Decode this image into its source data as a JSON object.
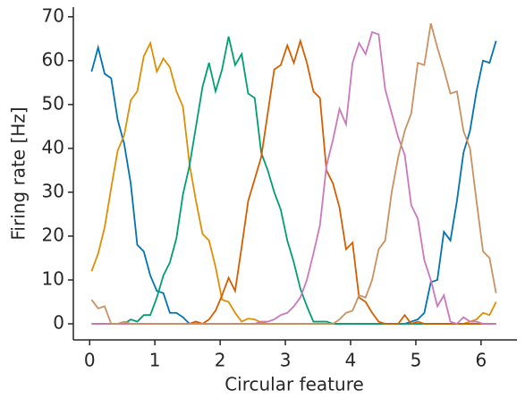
{
  "chart_data": {
    "type": "line",
    "xlabel": "Circular feature",
    "ylabel": "Firing rate [Hz]",
    "x": [
      0.03,
      0.13,
      0.23,
      0.33,
      0.43,
      0.53,
      0.63,
      0.73,
      0.83,
      0.93,
      1.03,
      1.13,
      1.23,
      1.33,
      1.43,
      1.53,
      1.63,
      1.73,
      1.83,
      1.93,
      2.03,
      2.13,
      2.23,
      2.33,
      2.43,
      2.53,
      2.63,
      2.73,
      2.83,
      2.93,
      3.03,
      3.13,
      3.23,
      3.33,
      3.43,
      3.53,
      3.63,
      3.73,
      3.83,
      3.93,
      4.03,
      4.13,
      4.23,
      4.33,
      4.43,
      4.53,
      4.63,
      4.73,
      4.83,
      4.93,
      5.03,
      5.13,
      5.23,
      5.33,
      5.43,
      5.53,
      5.63,
      5.73,
      5.83,
      5.93,
      6.03,
      6.13,
      6.23
    ],
    "series": [
      {
        "color": "#0173b2",
        "values": [
          57.5,
          63,
          57,
          56,
          46.5,
          41,
          32,
          18,
          16.5,
          11,
          7.5,
          7,
          2.5,
          2.5,
          1.5,
          0,
          0.5,
          0,
          0,
          0,
          0,
          0,
          0,
          0,
          0,
          0,
          0,
          0,
          0,
          0,
          0,
          0,
          0,
          0,
          0,
          0,
          0,
          0,
          0,
          0,
          0,
          0,
          0,
          0,
          0,
          0,
          0,
          0,
          0,
          0.5,
          1,
          2.5,
          9.5,
          10,
          21,
          19,
          28,
          39,
          44,
          53,
          60,
          59.5,
          64.5
        ]
      },
      {
        "color": "#de8f05",
        "values": [
          12,
          16,
          22,
          31,
          39.5,
          43,
          51,
          53,
          61,
          64,
          57.5,
          60.5,
          58.5,
          53,
          49.5,
          36.5,
          28,
          20.5,
          19,
          13,
          5.5,
          5,
          2.5,
          0.5,
          1.2,
          1,
          0.3,
          0,
          0,
          0,
          0,
          0,
          0,
          0,
          0,
          0,
          0,
          0,
          0,
          0,
          0,
          0,
          0,
          0,
          0,
          0,
          0,
          0,
          0,
          0,
          0,
          0,
          0,
          0,
          0,
          0,
          0,
          0,
          0.5,
          1,
          2.5,
          2,
          5
        ]
      },
      {
        "color": "#029e73",
        "values": [
          0,
          0,
          0,
          0,
          0,
          0,
          1,
          0.5,
          2,
          2,
          6,
          11,
          14,
          19.5,
          29.5,
          36,
          45,
          54,
          59.5,
          53,
          58,
          65.5,
          59,
          61.5,
          52.5,
          51.5,
          39,
          35,
          30,
          26,
          19,
          14,
          8,
          4,
          0.5,
          0.5,
          0.5,
          0,
          0,
          0,
          0,
          0,
          0,
          0,
          0,
          0,
          0,
          0,
          0,
          0,
          0,
          0,
          0,
          0,
          0,
          0,
          0,
          0,
          0,
          0,
          0,
          0,
          0
        ]
      },
      {
        "color": "#d55e00",
        "values": [
          0,
          0,
          0,
          0,
          0,
          0,
          0,
          0,
          0,
          0,
          0,
          0,
          0,
          0,
          0,
          0,
          0.5,
          0,
          1,
          3,
          6.5,
          10.5,
          7.5,
          17.5,
          28,
          33,
          38,
          48,
          58,
          59,
          63.5,
          59.5,
          64.5,
          59.5,
          53,
          51.5,
          35,
          32,
          26.5,
          17,
          18.5,
          6,
          5,
          2.5,
          0.5,
          0,
          0,
          0,
          2,
          0,
          0.5,
          0,
          0,
          0,
          0,
          0,
          0,
          0,
          0,
          0,
          0,
          0,
          0
        ]
      },
      {
        "color": "#cc78bc",
        "values": [
          0,
          0,
          0,
          0,
          0,
          0,
          0,
          0,
          0,
          0,
          0,
          0,
          0,
          0,
          0,
          0,
          0,
          0,
          0,
          0,
          0,
          0,
          0,
          0,
          0,
          0,
          0.5,
          0.5,
          1,
          2,
          2.5,
          4,
          6,
          10,
          16,
          22.5,
          36,
          42,
          49,
          45.5,
          59.5,
          64,
          61.5,
          66.5,
          66,
          53.5,
          48,
          42.5,
          38.5,
          27,
          24,
          14.5,
          10,
          4,
          6.5,
          0.5,
          0,
          1.5,
          0.5,
          0.5,
          0,
          0,
          0
        ]
      },
      {
        "color": "#ca9161",
        "values": [
          5.5,
          3.5,
          4,
          0,
          0,
          0.5,
          0,
          0,
          0,
          0,
          0,
          0,
          0,
          0,
          0,
          0,
          0,
          0,
          0,
          0,
          0,
          0,
          0,
          0,
          0,
          0,
          0,
          0,
          0,
          0,
          0,
          0,
          0,
          0,
          0,
          0,
          0,
          0,
          1,
          2.5,
          3,
          6.5,
          6,
          10,
          17,
          19,
          30,
          38,
          44,
          48,
          59.5,
          59,
          68.5,
          63,
          58,
          52.5,
          53,
          44,
          40,
          28,
          16.5,
          15,
          7
        ]
      }
    ],
    "xlim": [
      -0.25,
      6.55
    ],
    "ylim": [
      -3.67,
      72.2
    ],
    "xticks": [
      0,
      1,
      2,
      3,
      4,
      5,
      6
    ],
    "yticks": [
      0,
      10,
      20,
      30,
      40,
      50,
      60,
      70
    ]
  }
}
